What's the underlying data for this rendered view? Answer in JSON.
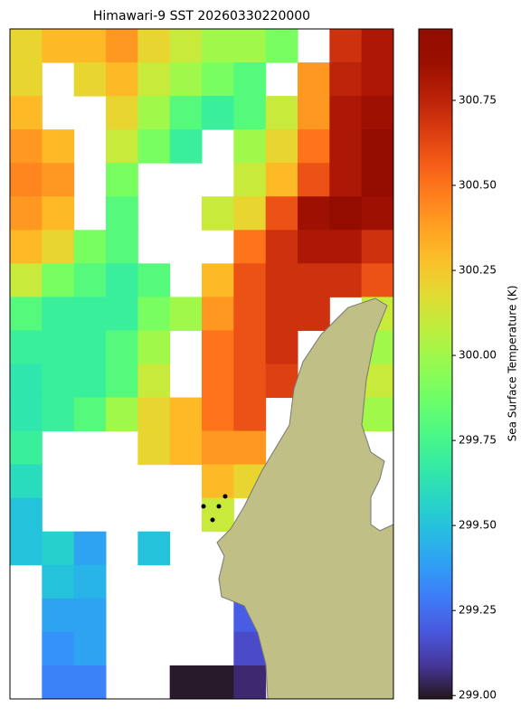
{
  "chart_data": {
    "type": "heatmap",
    "title": "Himawari-9 SST 20260330220000",
    "colorbar_label": "Sea Surface Temperature (K)",
    "colormap": "turbo",
    "ylim": [
      298.99,
      300.96
    ],
    "yticks": [
      {
        "value": 299,
        "label": "299.00"
      },
      299.25,
      {
        "value": 299.5,
        "label": "299.50"
      },
      299.75,
      {
        "value": 300,
        "label": "300.00"
      },
      300.25,
      {
        "value": 300.5,
        "label": "300.50"
      },
      300.75
    ],
    "z": [
      [
        300.2,
        300.3,
        300.3,
        300.4,
        300.2,
        300.1,
        300.0,
        300.0,
        299.9,
        null,
        300.7,
        300.8
      ],
      [
        300.2,
        null,
        300.2,
        300.3,
        300.1,
        300.0,
        299.9,
        299.8,
        null,
        300.4,
        300.75,
        300.8
      ],
      [
        300.3,
        null,
        null,
        300.2,
        300.0,
        299.8,
        299.7,
        299.8,
        300.1,
        300.4,
        300.8,
        300.85
      ],
      [
        300.4,
        300.3,
        null,
        300.1,
        299.9,
        299.7,
        null,
        300.0,
        300.2,
        300.5,
        300.8,
        300.9
      ],
      [
        300.45,
        300.4,
        null,
        299.9,
        null,
        null,
        null,
        300.1,
        300.3,
        300.6,
        300.8,
        300.9
      ],
      [
        300.4,
        300.3,
        null,
        299.8,
        null,
        null,
        300.1,
        300.2,
        300.6,
        300.85,
        300.9,
        300.85
      ],
      [
        300.3,
        300.2,
        299.9,
        299.8,
        null,
        null,
        null,
        300.5,
        300.7,
        300.8,
        300.8,
        300.7
      ],
      [
        300.1,
        299.9,
        299.8,
        299.7,
        299.8,
        null,
        300.3,
        300.6,
        300.7,
        300.7,
        300.7,
        300.6
      ],
      [
        299.8,
        299.7,
        299.7,
        299.7,
        299.9,
        300.0,
        300.4,
        300.6,
        300.7,
        300.7,
        null,
        300.1
      ],
      [
        299.7,
        299.7,
        299.7,
        299.8,
        300.0,
        null,
        300.5,
        300.6,
        300.7,
        null,
        null,
        300.0
      ],
      [
        299.65,
        299.7,
        299.7,
        299.8,
        300.1,
        null,
        300.5,
        300.6,
        300.65,
        null,
        null,
        300.1
      ],
      [
        299.65,
        299.7,
        299.8,
        300.0,
        300.2,
        300.3,
        300.5,
        300.6,
        null,
        null,
        null,
        300.0
      ],
      [
        299.7,
        null,
        null,
        null,
        300.2,
        300.3,
        300.4,
        300.4,
        null,
        null,
        null,
        null
      ],
      [
        299.6,
        null,
        null,
        null,
        null,
        null,
        300.3,
        300.2,
        null,
        null,
        null,
        null
      ],
      [
        299.5,
        null,
        null,
        null,
        null,
        null,
        300.1,
        null,
        null,
        null,
        null,
        null
      ],
      [
        299.5,
        299.55,
        299.4,
        null,
        299.5,
        null,
        null,
        null,
        null,
        null,
        null,
        null
      ],
      [
        null,
        299.5,
        299.45,
        null,
        null,
        null,
        null,
        null,
        null,
        null,
        null,
        null
      ],
      [
        null,
        299.4,
        299.4,
        null,
        null,
        null,
        null,
        299.2,
        null,
        null,
        null,
        null
      ],
      [
        null,
        299.35,
        299.4,
        null,
        null,
        null,
        null,
        299.15,
        null,
        null,
        null,
        null
      ],
      [
        null,
        299.3,
        299.3,
        null,
        null,
        299.0,
        299.0,
        299.05,
        null,
        null,
        null,
        null
      ]
    ]
  }
}
